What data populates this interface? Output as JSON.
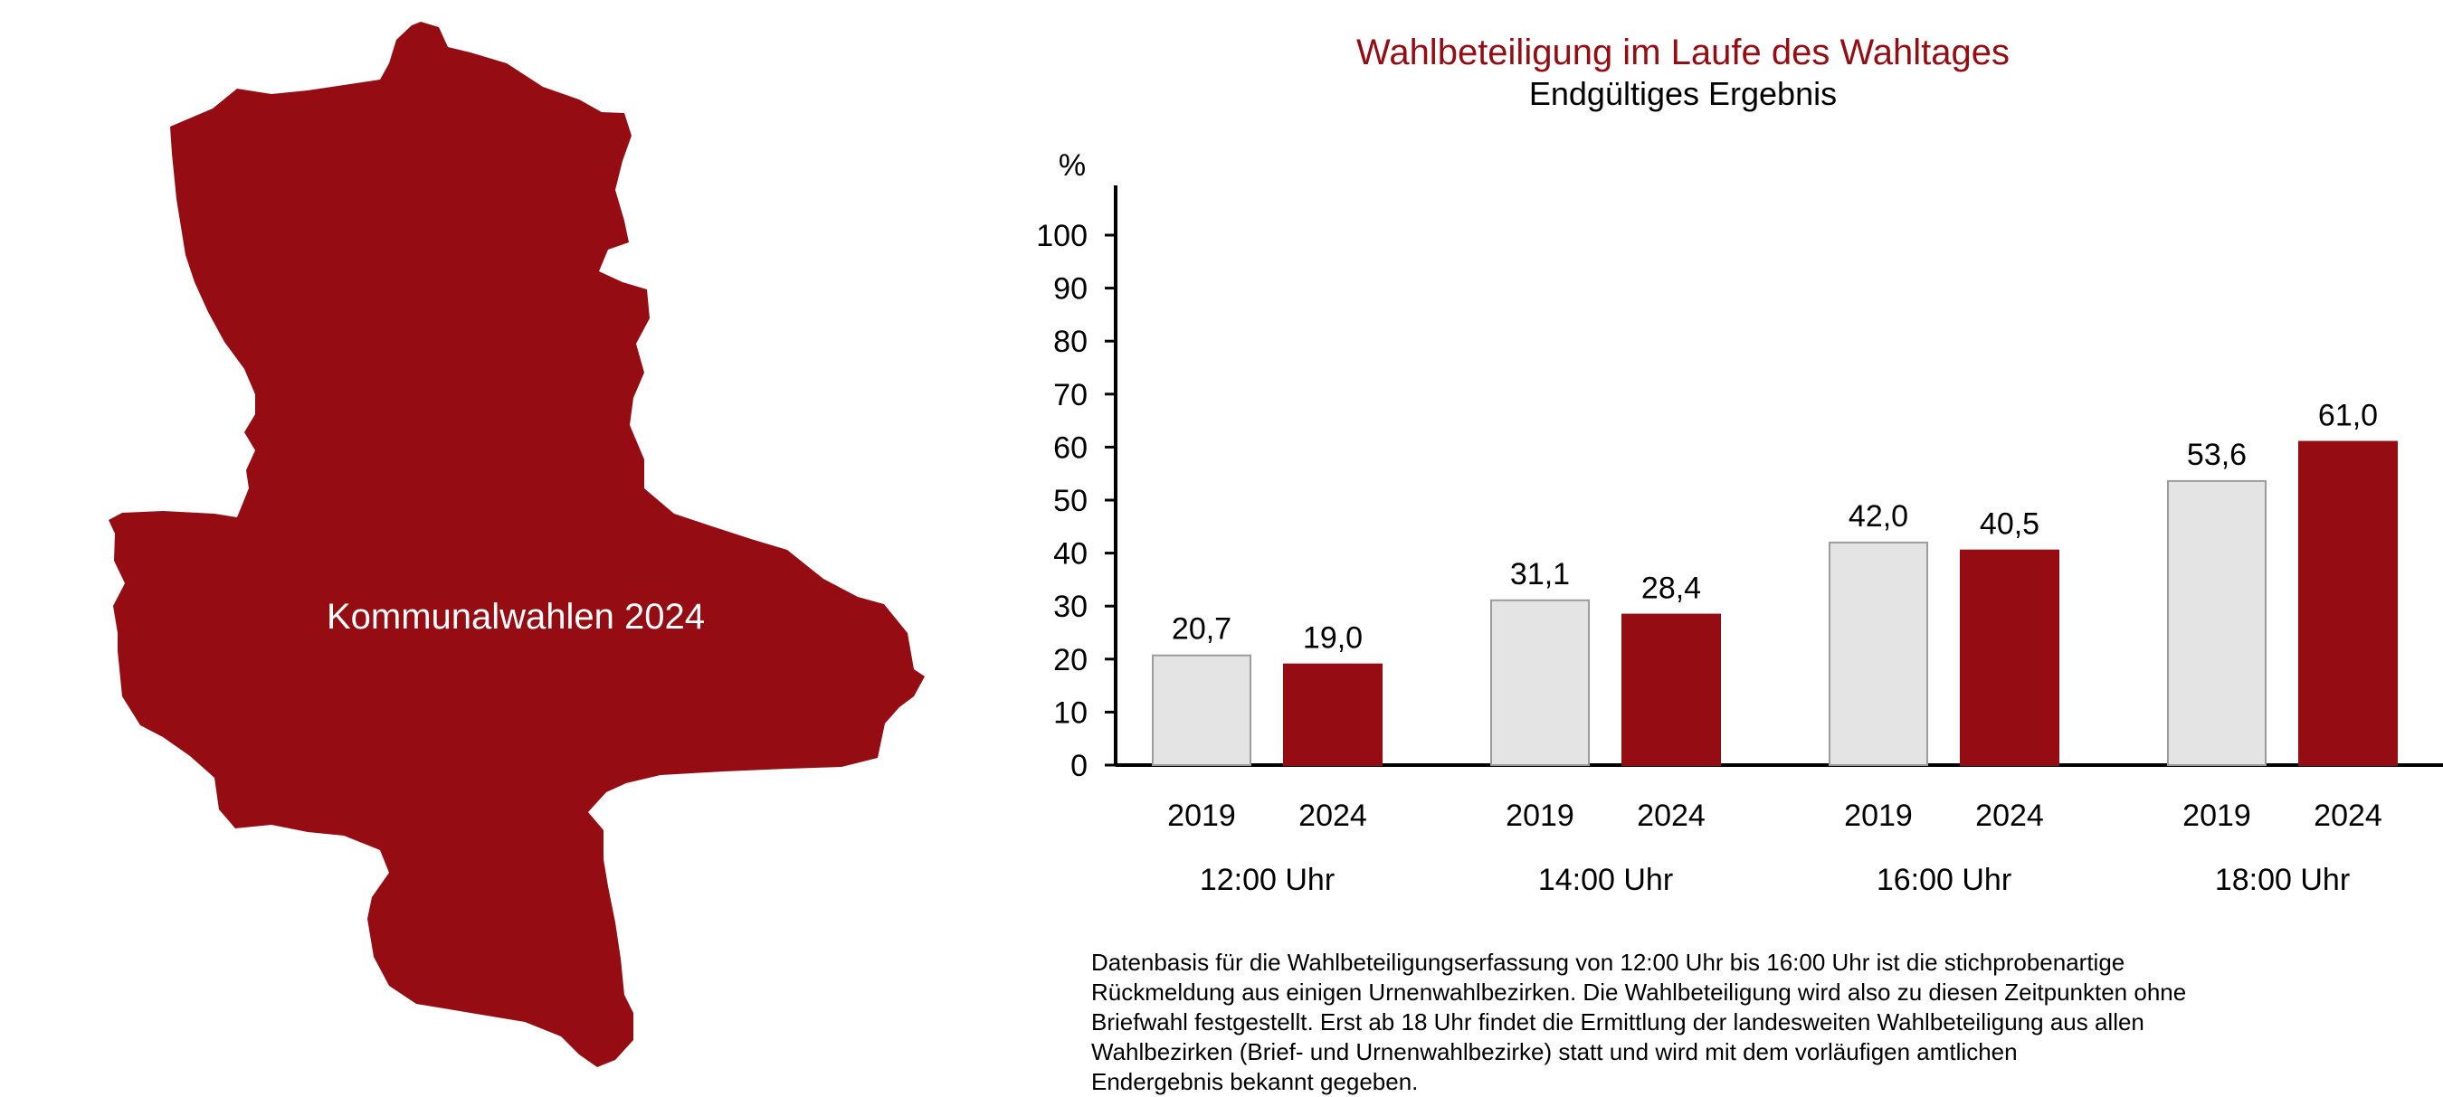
{
  "colors": {
    "accent": "#950d12",
    "bar_2019": "#e4e4e4",
    "bar_2019_border": "#9b9b9b",
    "bar_2024": "#950d12",
    "axis": "#000000",
    "title": "#950d12"
  },
  "map": {
    "label": "Kommunalwahlen 2024"
  },
  "footnote": {
    "lines": [
      "Datenbasis für die Wahlbeteiligungserfassung von 12:00 Uhr bis 16:00 Uhr ist die stichprobenartige",
      "Rückmeldung aus einigen Urnenwahlbezirken. Die Wahlbeteiligung wird also zu diesen Zeitpunkten ohne",
      "Briefwahl festgestellt. Erst ab 18 Uhr findet die Ermittlung der landesweiten Wahlbeteiligung aus allen",
      "Wahlbezirken (Brief- und Urnenwahlbezirke) statt und wird mit dem vorläufigen amtlichen",
      "Endergebnis bekannt gegeben."
    ]
  },
  "chart_data": {
    "type": "bar",
    "title": "Wahlbeteiligung im Laufe des Wahltages",
    "subtitle": "Endgültiges Ergebnis",
    "ylabel": "%",
    "xlabel": "",
    "ylim": [
      0,
      100
    ],
    "yticks": [
      0,
      10,
      20,
      30,
      40,
      50,
      60,
      70,
      80,
      90,
      100
    ],
    "grid": false,
    "legend": "none",
    "categories": [
      "12:00 Uhr",
      "14:00 Uhr",
      "16:00 Uhr",
      "18:00 Uhr"
    ],
    "series": [
      {
        "name": "2019",
        "values": [
          20.7,
          31.1,
          42.0,
          53.6
        ],
        "labels": [
          "20,7",
          "31,1",
          "42,0",
          "53,6"
        ]
      },
      {
        "name": "2024",
        "values": [
          19.0,
          28.4,
          40.5,
          61.0
        ],
        "labels": [
          "19,0",
          "28,4",
          "40,5",
          "61,0"
        ]
      }
    ]
  }
}
